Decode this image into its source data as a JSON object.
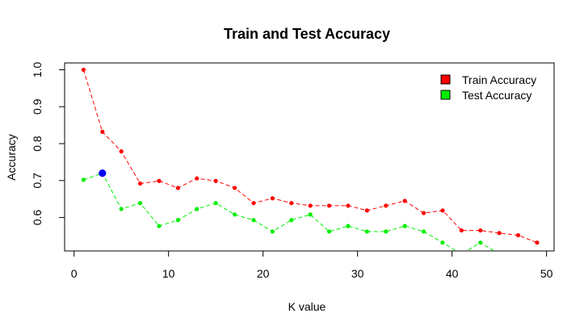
{
  "chart_data": {
    "type": "line",
    "title": "Train and Test  Accuracy",
    "xlabel": "K value",
    "ylabel": "Accuracy",
    "xlim": [
      -1.0,
      50.8
    ],
    "ylim": [
      0.5095,
      1.0185
    ],
    "x_ticks": [
      0,
      10,
      20,
      30,
      40,
      50
    ],
    "y_ticks": [
      0.6,
      0.7,
      0.8,
      0.9,
      1.0
    ],
    "y_tick_labels": [
      "0.6",
      "0.7",
      "0.8",
      "0.9",
      "1.0"
    ],
    "grid": false,
    "legend_position": "top-right",
    "x": [
      1,
      3,
      5,
      7,
      9,
      11,
      13,
      15,
      17,
      19,
      21,
      23,
      25,
      27,
      29,
      31,
      33,
      35,
      37,
      39,
      41,
      43,
      45,
      47,
      49
    ],
    "series": [
      {
        "name": "Train Accuracy",
        "color": "#ff0000",
        "values": [
          1.0,
          0.832,
          0.779,
          0.692,
          0.699,
          0.68,
          0.706,
          0.699,
          0.68,
          0.639,
          0.652,
          0.639,
          0.632,
          0.632,
          0.632,
          0.619,
          0.632,
          0.645,
          0.612,
          0.619,
          0.565,
          0.565,
          0.558,
          0.552,
          0.532
        ]
      },
      {
        "name": "Test Accuracy",
        "color": "#00ee00",
        "values": [
          0.702,
          0.72,
          0.623,
          0.639,
          0.577,
          0.593,
          0.623,
          0.639,
          0.608,
          0.593,
          0.562,
          0.593,
          0.608,
          0.562,
          0.577,
          0.562,
          0.562,
          0.577,
          0.562,
          0.532,
          0.501,
          0.532,
          0.501,
          0.501,
          0.501
        ]
      }
    ],
    "highlight": {
      "x": 3,
      "y": 0.72,
      "color": "#0000ff"
    }
  }
}
